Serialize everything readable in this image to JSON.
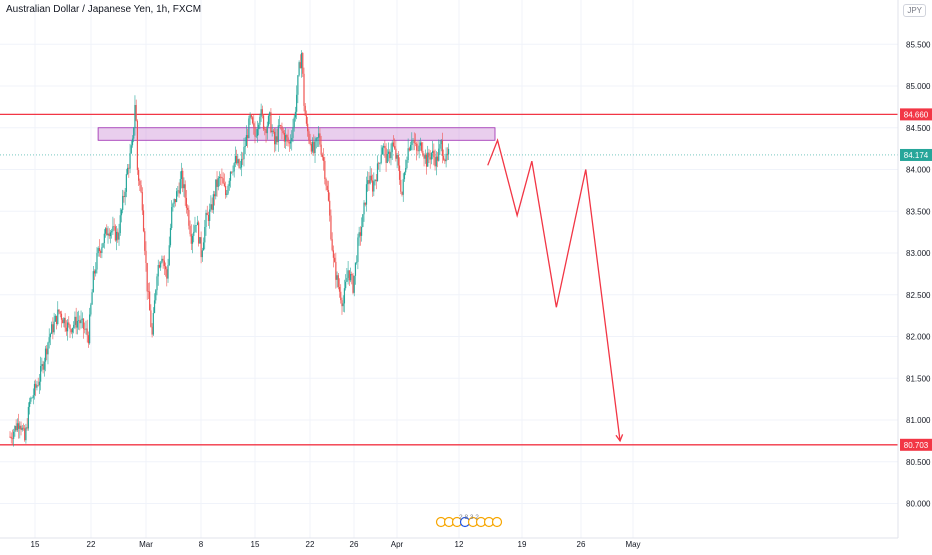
{
  "chart_data": {
    "type": "candlestick",
    "title": "Australian Dollar / Japanese Yen, 1h, FXCM",
    "currency": "JPY",
    "x_ticks": [
      "15",
      "22",
      "Mar",
      "8",
      "15",
      "22",
      "26",
      "Apr",
      "12",
      "19",
      "26",
      "May"
    ],
    "y_ticks": [
      "80.000",
      "80.500",
      "81.000",
      "81.500",
      "82.000",
      "82.500",
      "83.000",
      "83.500",
      "84.000",
      "84.500",
      "85.000",
      "85.500"
    ],
    "ylim": [
      79.75,
      85.65
    ],
    "horizontal_levels": [
      {
        "label": "84.660",
        "value": 84.66,
        "color": "#f23645"
      },
      {
        "label": "80.703",
        "value": 80.703,
        "color": "#f23645"
      }
    ],
    "last_price": {
      "label": "84.174",
      "value": 84.174,
      "color": "#26a69a"
    },
    "resistance_zone": {
      "y_low": 84.35,
      "y_high": 84.5,
      "x_start": 19,
      "x_end": 100
    },
    "projection_path": {
      "color": "#f23645",
      "points": [
        [
          97.5,
          84.05
        ],
        [
          99.5,
          84.35
        ],
        [
          103.5,
          83.45
        ],
        [
          106.5,
          84.1
        ],
        [
          111.5,
          82.35
        ],
        [
          117.5,
          84.0
        ],
        [
          124.5,
          80.75
        ]
      ]
    },
    "candle_path": [
      [
        0,
        80.8
      ],
      [
        1,
        80.9
      ],
      [
        2,
        81.0
      ],
      [
        3,
        80.75
      ],
      [
        4,
        81.2
      ],
      [
        6,
        81.5
      ],
      [
        8,
        82.0
      ],
      [
        10,
        82.3
      ],
      [
        12,
        82.1
      ],
      [
        14,
        82.2
      ],
      [
        16,
        82.0
      ],
      [
        17,
        82.7
      ],
      [
        18,
        83.0
      ],
      [
        20,
        83.3
      ],
      [
        22,
        83.2
      ],
      [
        23,
        83.6
      ],
      [
        24,
        84.0
      ],
      [
        25,
        84.3
      ],
      [
        25.6,
        84.9
      ],
      [
        26,
        84.0
      ],
      [
        27,
        83.6
      ],
      [
        28,
        82.6
      ],
      [
        29,
        82.0
      ],
      [
        30,
        82.8
      ],
      [
        31,
        83.0
      ],
      [
        32,
        82.7
      ],
      [
        33,
        83.5
      ],
      [
        34,
        83.7
      ],
      [
        35,
        83.9
      ],
      [
        36,
        83.6
      ],
      [
        37,
        83.2
      ],
      [
        38,
        83.4
      ],
      [
        39,
        83.0
      ],
      [
        40,
        83.4
      ],
      [
        41,
        83.5
      ],
      [
        42,
        83.8
      ],
      [
        43,
        83.9
      ],
      [
        44,
        83.7
      ],
      [
        45,
        84.0
      ],
      [
        46,
        84.1
      ],
      [
        47,
        84.0
      ],
      [
        48,
        84.3
      ],
      [
        49,
        84.6
      ],
      [
        50,
        84.4
      ],
      [
        51,
        84.7
      ],
      [
        52,
        84.5
      ],
      [
        53,
        84.6
      ],
      [
        54,
        84.3
      ],
      [
        55,
        84.5
      ],
      [
        56,
        84.4
      ],
      [
        57,
        84.3
      ],
      [
        58,
        84.6
      ],
      [
        59,
        85.2
      ],
      [
        59.5,
        85.4
      ],
      [
        60,
        84.8
      ],
      [
        60.5,
        84.5
      ],
      [
        61,
        84.4
      ],
      [
        62,
        84.2
      ],
      [
        63,
        84.4
      ],
      [
        64,
        84.1
      ],
      [
        65,
        83.6
      ],
      [
        66,
        82.9
      ],
      [
        67,
        82.6
      ],
      [
        68,
        82.4
      ],
      [
        69,
        82.8
      ],
      [
        70,
        82.6
      ],
      [
        71,
        83.1
      ],
      [
        72,
        83.4
      ],
      [
        73,
        83.9
      ],
      [
        74,
        83.8
      ],
      [
        75,
        84.0
      ],
      [
        76,
        84.3
      ],
      [
        77,
        84.1
      ],
      [
        78,
        84.3
      ],
      [
        79,
        84.1
      ],
      [
        80,
        83.7
      ],
      [
        81,
        84.2
      ],
      [
        82,
        84.4
      ],
      [
        83,
        84.2
      ],
      [
        84,
        84.3
      ],
      [
        85,
        84.1
      ],
      [
        86,
        84.2
      ],
      [
        87,
        84.1
      ],
      [
        88,
        84.3
      ],
      [
        89,
        84.1
      ],
      [
        89.5,
        84.17
      ]
    ],
    "events_label": "2 8 3 2"
  }
}
